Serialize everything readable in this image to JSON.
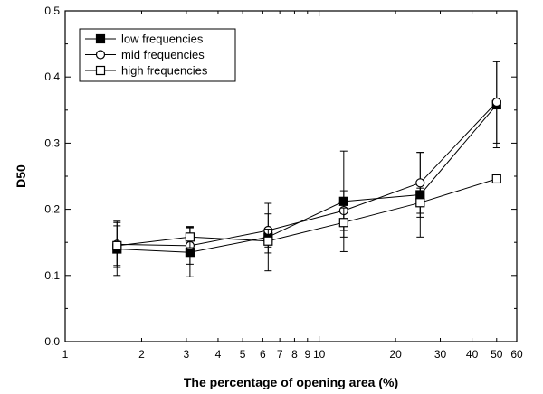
{
  "chart_data": {
    "type": "line",
    "title": "",
    "xlabel": "The percentage of opening area (%)",
    "ylabel": "D50",
    "xscale": "log",
    "xlim": [
      1,
      60
    ],
    "ylim": [
      0,
      0.5
    ],
    "grid": false,
    "legend_position": "top-left",
    "x_ticks": [
      1,
      2,
      3,
      4,
      5,
      6,
      7,
      8,
      9,
      10,
      20,
      30,
      40,
      50,
      60
    ],
    "x_tick_labels": [
      "1",
      "2",
      "3",
      "4",
      "5",
      "6",
      "7",
      "8",
      "9",
      "10",
      "20",
      "30",
      "40",
      "50",
      "60"
    ],
    "y_ticks": [
      0,
      0.1,
      0.2,
      0.3,
      0.4,
      0.5
    ],
    "y_tick_labels": [
      "0.0",
      "0.1",
      "0.2",
      "0.3",
      "0.4",
      "0.5"
    ],
    "x": [
      1.6,
      3.1,
      6.3,
      12.5,
      25,
      50
    ],
    "series": [
      {
        "name": "low frequencies",
        "marker": "filled-square",
        "values": [
          0.14,
          0.135,
          0.158,
          0.212,
          0.222,
          0.358
        ],
        "error": [
          0.04,
          0.037,
          0.051,
          0.076,
          0.064,
          0.065
        ]
      },
      {
        "name": "mid frequencies",
        "marker": "open-circle",
        "values": [
          0.147,
          0.145,
          0.168,
          0.198,
          0.24,
          0.362
        ],
        "error": [
          0.035,
          0.028,
          0.025,
          0.03,
          0.046,
          0.062
        ]
      },
      {
        "name": "high frequencies",
        "marker": "open-square",
        "values": [
          0.145,
          0.158,
          0.152,
          0.18,
          0.21,
          0.246
        ],
        "error": [
          0.03,
          0.016,
          0.018,
          0.022,
          0.022,
          0
        ]
      }
    ],
    "colors": {
      "line": "#000000",
      "background": "#ffffff"
    }
  }
}
